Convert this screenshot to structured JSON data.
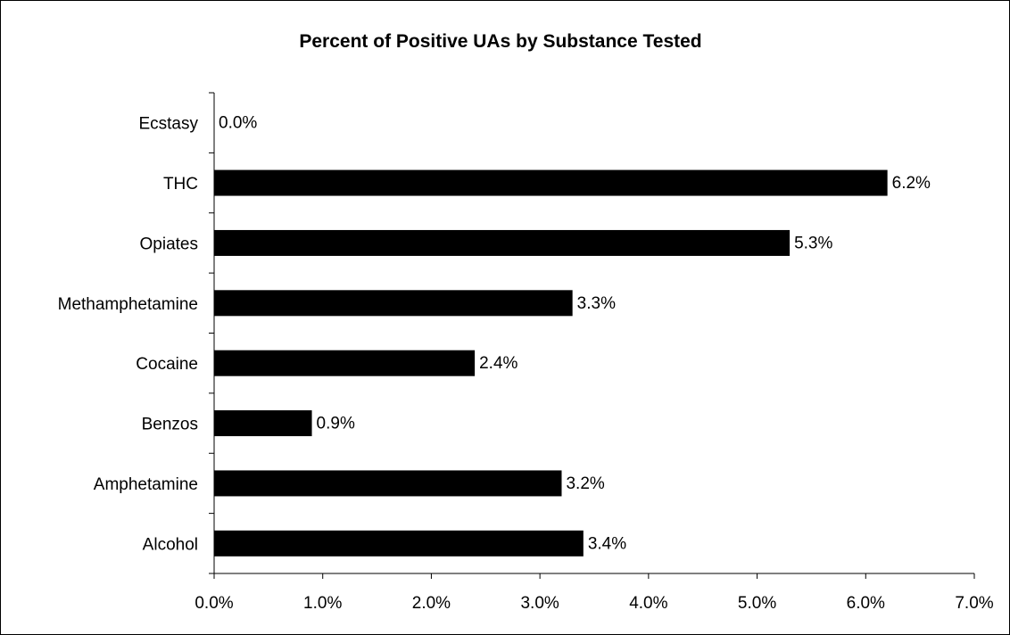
{
  "chart_data": {
    "type": "bar",
    "orientation": "horizontal",
    "title": "Percent of Positive UAs by Substance Tested",
    "categories": [
      "Alcohol",
      "Amphetamine",
      "Benzos",
      "Cocaine",
      "Methamphetamine",
      "Opiates",
      "THC",
      "Ecstasy"
    ],
    "values": [
      3.4,
      3.2,
      0.9,
      2.4,
      3.3,
      5.3,
      6.2,
      0.0
    ],
    "data_labels": [
      "3.4%",
      "3.2%",
      "0.9%",
      "2.4%",
      "3.3%",
      "5.3%",
      "6.2%",
      "0.0%"
    ],
    "xlim": [
      0,
      7
    ],
    "x_ticks": [
      0,
      1,
      2,
      3,
      4,
      5,
      6,
      7
    ],
    "x_tick_labels": [
      "0.0%",
      "1.0%",
      "2.0%",
      "3.0%",
      "4.0%",
      "5.0%",
      "6.0%",
      "7.0%"
    ],
    "xlabel": "",
    "ylabel": "",
    "grid": false,
    "legend": "none",
    "bar_color": "#000000"
  }
}
